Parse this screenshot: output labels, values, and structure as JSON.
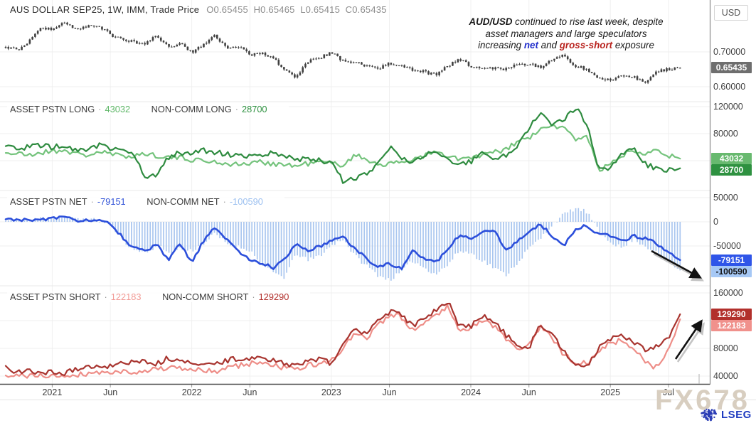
{
  "header": {
    "title": "AUS DOLLAR SEP25, 1W, IMM, Trade Price",
    "ohlc": {
      "o": "O0.65455",
      "h": "H0.65465",
      "l": "L0.65415",
      "c": "C0.65435"
    }
  },
  "annotation": {
    "line1_bold": "AUD/USD",
    "line1_rest": " continued to rise last week, despite",
    "line2": "asset managers and large speculators",
    "line3_pre": "increasing ",
    "net_word": "net",
    "line3_mid": " and ",
    "gross_word": "gross-short",
    "line3_post": " exposure",
    "text_color": "#1a1a1a",
    "net_color": "#2330cc",
    "gross_color": "#b9241f",
    "arrows": [
      {
        "panel": "net",
        "from": [
          916,
          353
        ],
        "to": [
          984,
          390
        ]
      },
      {
        "panel": "short",
        "from": [
          950,
          505
        ],
        "to": [
          986,
          452
        ]
      }
    ]
  },
  "legend_sep": "·",
  "legends": {
    "long": [
      {
        "label": "ASSET PSTN LONG",
        "value": "43032",
        "color": "#5fb768"
      },
      {
        "label": "NON-COMM LONG",
        "value": "28700",
        "color": "#2e9140"
      }
    ],
    "net": [
      {
        "label": "ASSET PSTN NET",
        "value": "-79151",
        "color": "#3355d8"
      },
      {
        "label": "NON-COMM NET",
        "value": "-100590",
        "color": "#9cc0f0"
      }
    ],
    "short": [
      {
        "label": "ASSET PSTN SHORT",
        "value": "122183",
        "color": "#f29b96"
      },
      {
        "label": "NON-COMM SHORT",
        "value": "129290",
        "color": "#b2302c"
      }
    ]
  },
  "axis": {
    "currency": "USD",
    "x_ticks": [
      {
        "label": "2021",
        "m": 4
      },
      {
        "label": "Jun",
        "m": 9
      },
      {
        "label": "2022",
        "m": 16
      },
      {
        "label": "Jun",
        "m": 21
      },
      {
        "label": "2023",
        "m": 28
      },
      {
        "label": "Jun",
        "m": 33
      },
      {
        "label": "2024",
        "m": 40
      },
      {
        "label": "Jun",
        "m": 45
      },
      {
        "label": "2025",
        "m": 52
      },
      {
        "label": "Jul",
        "m": 57
      }
    ],
    "panels": {
      "price": {
        "ticks": [
          {
            "label": "0.70000",
            "value": 0.7
          },
          {
            "label": "0.60000",
            "value": 0.6
          }
        ],
        "gridlines": [
          0.7,
          0.6
        ],
        "badges": [
          {
            "label": "0.65435",
            "value": 0.65435,
            "bg": "#6e6e6e",
            "fg": "#ffffff"
          }
        ]
      },
      "long": {
        "ticks": [
          {
            "label": "120000",
            "value": 120
          },
          {
            "label": "80000",
            "value": 80
          }
        ],
        "gridlines": [
          120,
          80,
          40
        ],
        "badges": [
          {
            "label": "43032",
            "value": 43.032,
            "bg": "#68b96f",
            "fg": "#ffffff"
          },
          {
            "label": "28700",
            "value": 28.7,
            "bg": "#2e9140",
            "fg": "#ffffff"
          }
        ]
      },
      "net": {
        "ticks": [
          {
            "label": "50000",
            "value": 50
          },
          {
            "label": "0",
            "value": 0
          },
          {
            "label": "-50000",
            "value": -50
          }
        ],
        "gridlines": [
          50,
          0,
          -50
        ],
        "badges": [
          {
            "label": "-79151",
            "value": -79.151,
            "bg": "#2f55e8",
            "fg": "#ffffff"
          },
          {
            "label": "-100590",
            "value": -100.59,
            "bg": "#a6c8f5",
            "fg": "#111111"
          }
        ]
      },
      "short": {
        "ticks": [
          {
            "label": "160000",
            "value": 160
          },
          {
            "label": "80000",
            "value": 80
          },
          {
            "label": "40000",
            "value": 40
          }
        ],
        "gridlines": [
          160,
          120,
          80,
          40
        ],
        "badges": [
          {
            "label": "129290",
            "value": 129.29,
            "bg": "#b2302c",
            "fg": "#ffffff"
          },
          {
            "label": "122183",
            "value": 122.183,
            "bg": "#f0918c",
            "fg": "#ffffff"
          }
        ]
      }
    }
  },
  "watermark": "FX678",
  "logo_text": "LSEG",
  "chart_data": {
    "x_axis": {
      "start": "2020-09",
      "end": "2025-07",
      "step": "month",
      "points": 59
    },
    "values_scale": 1000,
    "panels": [
      {
        "id": "price",
        "type": "candlestick",
        "name": "AUD/USD weekly price",
        "color": "#3f3f3f",
        "ylim": [
          0.58,
          0.82
        ],
        "close": [
          0.715,
          0.705,
          0.73,
          0.77,
          0.765,
          0.785,
          0.768,
          0.772,
          0.775,
          0.75,
          0.736,
          0.73,
          0.722,
          0.748,
          0.713,
          0.726,
          0.7,
          0.718,
          0.749,
          0.71,
          0.717,
          0.69,
          0.698,
          0.684,
          0.645,
          0.628,
          0.672,
          0.681,
          0.7,
          0.673,
          0.669,
          0.661,
          0.652,
          0.666,
          0.665,
          0.646,
          0.643,
          0.634,
          0.66,
          0.681,
          0.657,
          0.653,
          0.652,
          0.651,
          0.663,
          0.667,
          0.654,
          0.676,
          0.69,
          0.658,
          0.651,
          0.621,
          0.622,
          0.631,
          0.628,
          0.612,
          0.644,
          0.65,
          0.65435
        ]
      },
      {
        "id": "long",
        "type": "line",
        "ylim": [
          0,
          130
        ],
        "series": [
          {
            "name": "ASSET PSTN LONG",
            "color": "#74c37c",
            "width": 2.2,
            "values": [
              52,
              50,
              48,
              52,
              54,
              56,
              50,
              48,
              53,
              50,
              46,
              48,
              50,
              48,
              45,
              44,
              42,
              40,
              38,
              36,
              34,
              36,
              38,
              36,
              34,
              32,
              36,
              38,
              36,
              34,
              48,
              42,
              36,
              34,
              38,
              42,
              48,
              52,
              46,
              42,
              44,
              48,
              52,
              56,
              68,
              74,
              85,
              92,
              88,
              72,
              78,
              26,
              34,
              48,
              56,
              52,
              58,
              48,
              43.032
            ]
          },
          {
            "name": "NON-COMM LONG",
            "color": "#2e8b3f",
            "width": 2.2,
            "values": [
              62,
              58,
              60,
              63,
              60,
              62,
              55,
              57,
              63,
              58,
              55,
              52,
              14,
              18,
              45,
              52,
              50,
              55,
              52,
              50,
              48,
              45,
              48,
              52,
              45,
              42,
              44,
              40,
              38,
              10,
              14,
              20,
              35,
              60,
              42,
              38,
              48,
              55,
              42,
              35,
              38,
              55,
              42,
              48,
              60,
              90,
              112,
              95,
              100,
              118,
              95,
              25,
              30,
              48,
              62,
              35,
              28,
              26,
              28.7
            ]
          }
        ]
      },
      {
        "id": "net",
        "type": "line+bar",
        "ylim": [
          -130,
          55
        ],
        "series": [
          {
            "name": "NON-COMM NET",
            "style": "bar",
            "color": "#a9c6ef",
            "values": [
              2,
              5,
              1,
              8,
              10,
              12,
              5,
              6,
              2,
              -5,
              -35,
              -58,
              -62,
              -50,
              -63,
              -55,
              -60,
              -45,
              -25,
              -45,
              -52,
              -58,
              -90,
              -105,
              -115,
              -65,
              -80,
              -70,
              -50,
              -35,
              -70,
              -90,
              -110,
              -120,
              -105,
              -80,
              -95,
              -108,
              -90,
              -60,
              -65,
              -80,
              -95,
              -110,
              -85,
              -55,
              -35,
              -5,
              15,
              28,
              20,
              -20,
              -40,
              -55,
              -35,
              -50,
              -65,
              -85,
              -100.59
            ]
          },
          {
            "name": "ASSET PSTN NET",
            "style": "line",
            "color": "#2c4fdb",
            "width": 2.6,
            "values": [
              4,
              6,
              2,
              5,
              7,
              9,
              3,
              4,
              1,
              -4,
              -30,
              -55,
              -60,
              -48,
              -80,
              -45,
              -85,
              -40,
              -12,
              -35,
              -60,
              -80,
              -85,
              -95,
              -75,
              -45,
              -62,
              -50,
              -40,
              -28,
              -55,
              -75,
              -92,
              -88,
              -98,
              -60,
              -75,
              -85,
              -55,
              -28,
              -35,
              -20,
              -15,
              -60,
              -40,
              -20,
              -5,
              -30,
              -50,
              -15,
              -8,
              -25,
              -30,
              -40,
              -28,
              -35,
              -45,
              -62,
              -79.151
            ]
          }
        ]
      },
      {
        "id": "short",
        "type": "line",
        "ylim": [
          30,
          165
        ],
        "series": [
          {
            "name": "ASSET PSTN SHORT",
            "color": "#ee8e88",
            "width": 2.2,
            "values": [
              38,
              40,
              41,
              40,
              40,
              41,
              42,
              44,
              45,
              46,
              46,
              47,
              48,
              50,
              52,
              50,
              50,
              48,
              46,
              52,
              55,
              58,
              60,
              56,
              52,
              50,
              55,
              58,
              62,
              80,
              100,
              95,
              112,
              128,
              126,
              108,
              115,
              128,
              142,
              108,
              108,
              122,
              112,
              95,
              78,
              85,
              110,
              95,
              70,
              60,
              58,
              75,
              88,
              92,
              80,
              60,
              52,
              75,
              122.183
            ]
          },
          {
            "name": "NON-COMM SHORT",
            "color": "#a8342f",
            "width": 2.2,
            "values": [
              52,
              46,
              48,
              45,
              46,
              44,
              50,
              54,
              52,
              56,
              58,
              60,
              63,
              58,
              66,
              62,
              60,
              58,
              56,
              62,
              66,
              64,
              68,
              62,
              58,
              56,
              60,
              64,
              58,
              88,
              108,
              102,
              120,
              133,
              128,
              112,
              122,
              135,
              148,
              113,
              112,
              128,
              118,
              100,
              82,
              80,
              116,
              100,
              75,
              58,
              54,
              80,
              92,
              100,
              88,
              78,
              82,
              95,
              129.29
            ]
          }
        ]
      }
    ]
  }
}
